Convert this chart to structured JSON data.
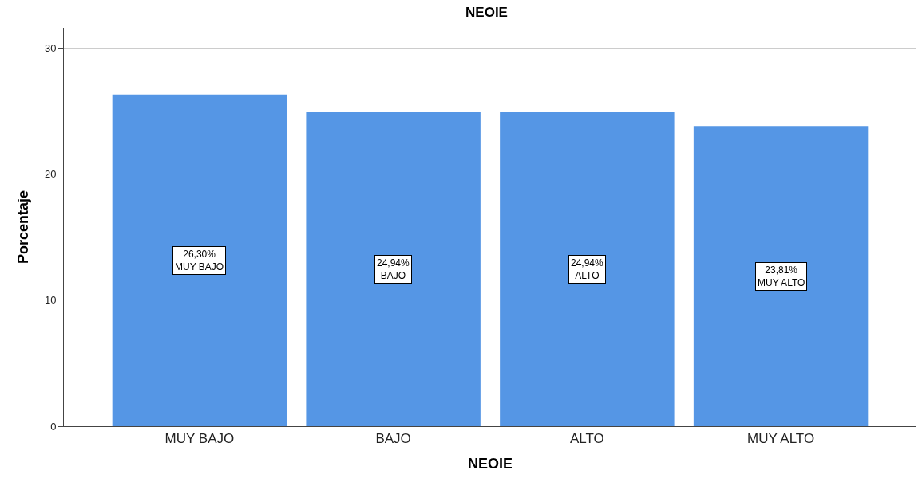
{
  "chart_data": {
    "type": "bar",
    "title": "NEOIE",
    "xlabel": "NEOIE",
    "ylabel": "Porcentaje",
    "categories": [
      "MUY BAJO",
      "BAJO",
      "ALTO",
      "MUY ALTO"
    ],
    "values": [
      26.3,
      24.94,
      24.94,
      23.81
    ],
    "value_labels": [
      "26,30%\nMUY BAJO",
      "24,94%\nBAJO",
      "24,94%\nALTO",
      "23,81%\nMUY ALTO"
    ],
    "color": "#5596e5",
    "ylim": [
      0,
      31.6
    ],
    "yticks": [
      0,
      10,
      20,
      30
    ],
    "grid": "y",
    "legend": false
  }
}
